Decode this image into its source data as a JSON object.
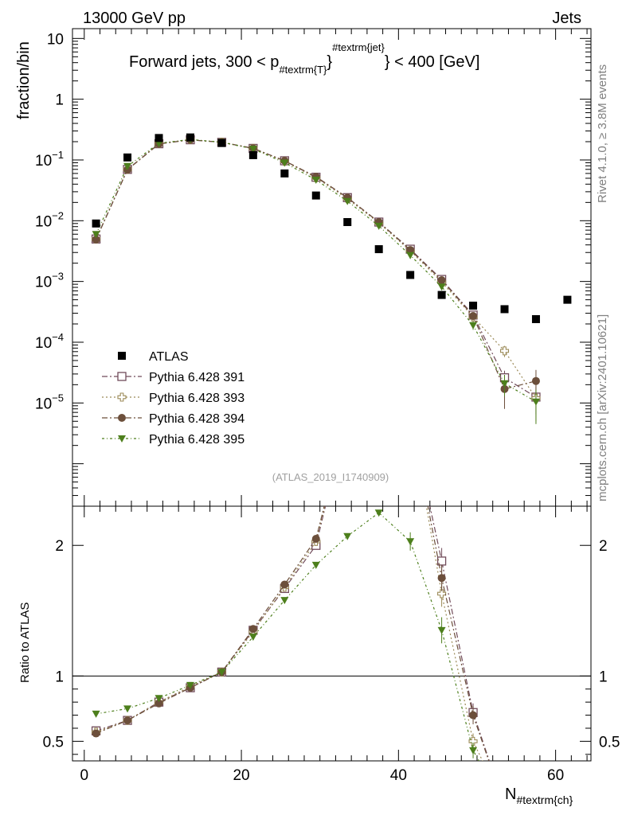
{
  "header": {
    "left": "13000 GeV pp",
    "right": "Jets"
  },
  "title_parts": {
    "prefix": "Forward jets, 300 < p",
    "sub": "#textrm{T}",
    "sup": "#textrm{jet}",
    "suffix": "} < 400 [GeV]"
  },
  "side_labels": {
    "rivet": "Rivet 4.1.0, ≥ 3.8M events",
    "mcplots": "mcplots.cern.ch [arXiv:2401.10621]"
  },
  "watermark": "(ATLAS_2019_I1740909)",
  "x_axis": {
    "label_main": "N",
    "label_sub": "#textrm{ch}",
    "ticks": [
      "0",
      "20",
      "40",
      "60"
    ],
    "tick_values": [
      0,
      20,
      40,
      60
    ],
    "range": [
      -1.5,
      64.5
    ]
  },
  "main_y": {
    "label": "fraction/bin",
    "tick_values": [
      10,
      1,
      0.1,
      0.01,
      0.001,
      0.0001,
      1e-05
    ],
    "range": [
      2e-07,
      14.5
    ],
    "ticks": [
      {
        "mant": "10",
        "exp": ""
      },
      {
        "mant": "1",
        "exp": ""
      },
      {
        "mant": "10",
        "exp": "−1"
      },
      {
        "mant": "10",
        "exp": "−2"
      },
      {
        "mant": "10",
        "exp": "−3"
      },
      {
        "mant": "10",
        "exp": "−4"
      },
      {
        "mant": "10",
        "exp": "−5"
      }
    ]
  },
  "ratio_y": {
    "label": "Ratio to ATLAS",
    "ticks": [
      "2",
      "1",
      "0.5"
    ],
    "tick_values": [
      2,
      1,
      0.5
    ],
    "range": [
      0.35,
      2.3
    ]
  },
  "legend": [
    {
      "label": "ATLAS",
      "color": "#000000",
      "marker": "square-filled",
      "dash": ""
    },
    {
      "label": "Pythia 6.428 391",
      "color": "#714b5a",
      "marker": "square-open",
      "dash": "7,3,2,3"
    },
    {
      "label": "Pythia 6.428 393",
      "color": "#9b8a57",
      "marker": "cross-open",
      "dash": "2,3"
    },
    {
      "label": "Pythia 6.428 394",
      "color": "#6c4f3b",
      "marker": "circle-filled",
      "dash": "7,3,2,3"
    },
    {
      "label": "Pythia 6.428 395",
      "color": "#4d7f1c",
      "marker": "triangle-down-filled",
      "dash": "3,3,1,3"
    }
  ],
  "chart_data": {
    "type": "scatter",
    "title": "Forward jets, 300 < p_T^jet < 400 [GeV]",
    "xlabel": "N_ch",
    "ylabel": "fraction/bin",
    "yscale": "log",
    "x": [
      1.5,
      5.5,
      9.5,
      13.5,
      17.5,
      21.5,
      25.5,
      29.5,
      33.5,
      37.5,
      41.5,
      45.5,
      49.5,
      53.5,
      57.5,
      61.5
    ],
    "data": {
      "name": "ATLAS",
      "values": [
        0.009,
        0.11,
        0.23,
        0.235,
        0.19,
        0.12,
        0.06,
        0.026,
        0.0095,
        0.0034,
        0.00128,
        0.0006,
        0.0004,
        0.00035,
        0.00024,
        0.0005
      ]
    },
    "series": [
      {
        "name": "Pythia 6.428 391",
        "values": [
          0.005,
          0.07,
          0.185,
          0.215,
          0.195,
          0.155,
          0.097,
          0.052,
          0.024,
          0.0095,
          0.0034,
          0.00108,
          0.00028,
          2.6e-05,
          1.25e-05,
          null
        ],
        "errors": [
          0,
          0,
          0,
          0,
          0,
          0,
          0,
          0,
          0,
          0,
          0.0002,
          8e-05,
          4e-05,
          8e-06,
          6e-06,
          null
        ]
      },
      {
        "name": "Pythia 6.428 393",
        "values": [
          0.005,
          0.07,
          0.186,
          0.216,
          0.196,
          0.155,
          0.095,
          0.051,
          0.023,
          0.0092,
          0.0032,
          0.00098,
          0.00026,
          7.2e-05,
          1.2e-05,
          null
        ],
        "errors": [
          0,
          0,
          0,
          0,
          0,
          0,
          0,
          0,
          0,
          0,
          0.0002,
          8e-05,
          4e-05,
          1.5e-05,
          7e-06,
          null
        ]
      },
      {
        "name": "Pythia 6.428 394",
        "values": [
          0.0049,
          0.069,
          0.183,
          0.214,
          0.196,
          0.156,
          0.097,
          0.053,
          0.024,
          0.0095,
          0.0033,
          0.00105,
          0.00027,
          1.7e-05,
          2.3e-05,
          null
        ],
        "errors": [
          0,
          0,
          0,
          0,
          0,
          0,
          0,
          0,
          0,
          0,
          0.0002,
          8e-05,
          4e-05,
          9e-06,
          1.2e-05,
          null
        ]
      },
      {
        "name": "Pythia 6.428 395",
        "values": [
          0.006,
          0.079,
          0.188,
          0.218,
          0.196,
          0.152,
          0.09,
          0.047,
          0.021,
          0.0082,
          0.0027,
          0.00082,
          0.00019,
          2.1e-05,
          1.05e-05,
          null
        ],
        "errors": [
          0,
          0,
          0,
          0,
          0,
          0,
          0,
          0,
          0,
          0,
          0.0002,
          7e-05,
          3e-05,
          8e-06,
          6e-06,
          null
        ]
      }
    ],
    "ratio": [
      {
        "name": "Pythia 6.428 391",
        "values": [
          0.58,
          0.66,
          0.8,
          0.91,
          1.03,
          1.35,
          1.67,
          2.0,
          null,
          null,
          null,
          1.88,
          0.72,
          null,
          null,
          null
        ],
        "errors": [
          0,
          0,
          0,
          0,
          0,
          0,
          0,
          0,
          null,
          null,
          null,
          0.1,
          0.07,
          null,
          null,
          null
        ]
      },
      {
        "name": "Pythia 6.428 393",
        "values": [
          0.57,
          0.66,
          0.8,
          0.92,
          1.03,
          1.34,
          1.68,
          2.03,
          null,
          null,
          null,
          1.63,
          0.5,
          null,
          null,
          null
        ],
        "errors": [
          0,
          0,
          0,
          0,
          0,
          0,
          0,
          0,
          null,
          null,
          null,
          0.1,
          0.06,
          null,
          null,
          null
        ]
      },
      {
        "name": "Pythia 6.428 394",
        "values": [
          0.56,
          0.66,
          0.79,
          0.91,
          1.03,
          1.36,
          1.7,
          2.05,
          null,
          null,
          null,
          1.75,
          0.7,
          null,
          null,
          null
        ],
        "errors": [
          0,
          0,
          0,
          0,
          0,
          0,
          0,
          0,
          null,
          null,
          null,
          0.1,
          0.07,
          null,
          null,
          null
        ]
      },
      {
        "name": "Pythia 6.428 395",
        "values": [
          0.71,
          0.75,
          0.83,
          0.93,
          1.03,
          1.3,
          1.58,
          1.85,
          2.07,
          2.25,
          2.03,
          1.35,
          0.43,
          null,
          null,
          null
        ],
        "errors": [
          0,
          0,
          0,
          0,
          0,
          0,
          0,
          0,
          0,
          0,
          0.07,
          0.1,
          0.06,
          null,
          null,
          null
        ]
      }
    ]
  }
}
